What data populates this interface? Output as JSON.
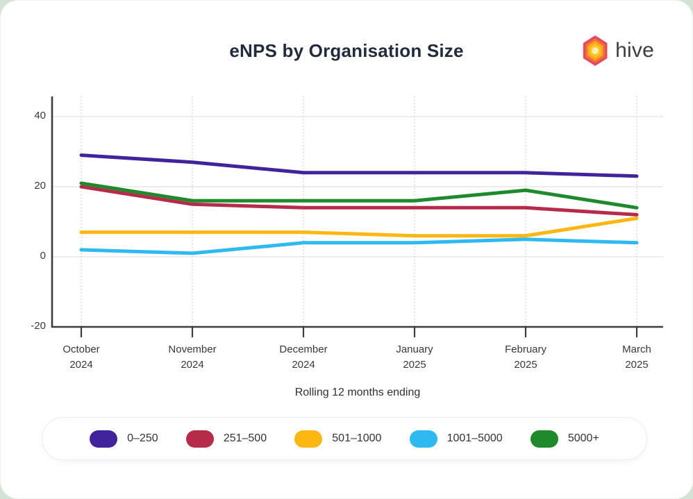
{
  "title": "eNPS by Organisation Size",
  "brand": {
    "name": "hive"
  },
  "colors": {
    "page_background": "#d3e2d4",
    "card_background": "#ffffff",
    "title_text": "#222b3b",
    "axis_line": "#3d3d3d",
    "gridline": "#e5e5e5",
    "dotted_gridline": "#cccccc",
    "tick_text": "#383838",
    "logo_rings": [
      "#e9495d",
      "#f0752e",
      "#f9a81f",
      "#fcc521",
      "#ffedb8"
    ]
  },
  "chart_data": {
    "type": "line",
    "title": "eNPS by Organisation Size",
    "xlabel": "Rolling 12 months ending",
    "ylabel": "",
    "categories": [
      "October 2024",
      "November 2024",
      "December 2024",
      "January 2025",
      "February 2025",
      "March 2025"
    ],
    "series": [
      {
        "name": "0–250",
        "color": "#41249b",
        "values": [
          29,
          27,
          24,
          24,
          24,
          23
        ]
      },
      {
        "name": "251–500",
        "color": "#b52b49",
        "values": [
          20,
          15,
          14,
          14,
          14,
          12
        ]
      },
      {
        "name": "501–1000",
        "color": "#fcb713",
        "values": [
          7,
          7,
          7,
          6,
          6,
          11
        ]
      },
      {
        "name": "1001–5000",
        "color": "#2eb9f0",
        "values": [
          2,
          1,
          4,
          4,
          5,
          4
        ]
      },
      {
        "name": "5000+",
        "color": "#1e8a2b",
        "values": [
          21,
          16,
          16,
          16,
          19,
          14
        ]
      }
    ],
    "yticks": [
      40,
      20,
      0,
      -20
    ],
    "ylim": [
      -20,
      45.5
    ],
    "grid": true,
    "legend_position": "bottom"
  }
}
